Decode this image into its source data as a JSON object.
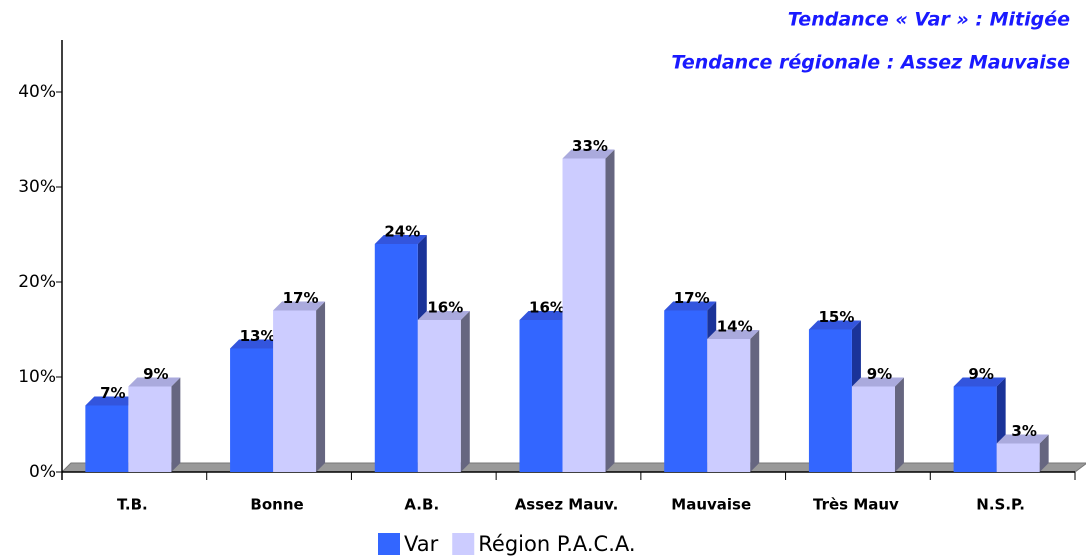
{
  "chart_data": {
    "type": "bar",
    "title": "Tendance « Var » : Mitigée",
    "subtitle": "Tendance régionale : Assez Mauvaise",
    "categories": [
      "T.B.",
      "Bonne",
      "A.B.",
      "Assez Mauv.",
      "Mauvaise",
      "Très Mauv",
      "N.S.P."
    ],
    "series": [
      {
        "name": "Var",
        "color": "#3366ff",
        "values": [
          7,
          13,
          24,
          16,
          17,
          15,
          9
        ],
        "value_labels": [
          "7%",
          "13%",
          "24%",
          "16%",
          "17%",
          "15%",
          "9%"
        ]
      },
      {
        "name": "Région P.A.C.A.",
        "color": "#ccccff",
        "values": [
          9,
          17,
          16,
          33,
          14,
          9,
          3
        ],
        "value_labels": [
          "9%",
          "17%",
          "16%",
          "33%",
          "14%",
          "9%",
          "3%"
        ]
      }
    ],
    "ylim": [
      0,
      45
    ],
    "yticks": [
      {
        "value": 0,
        "label": "0%"
      },
      {
        "value": 10,
        "label": "10%"
      },
      {
        "value": 20,
        "label": "20%"
      },
      {
        "value": 30,
        "label": "30%"
      },
      {
        "value": 40,
        "label": "40%"
      }
    ],
    "legend": "bottom"
  }
}
